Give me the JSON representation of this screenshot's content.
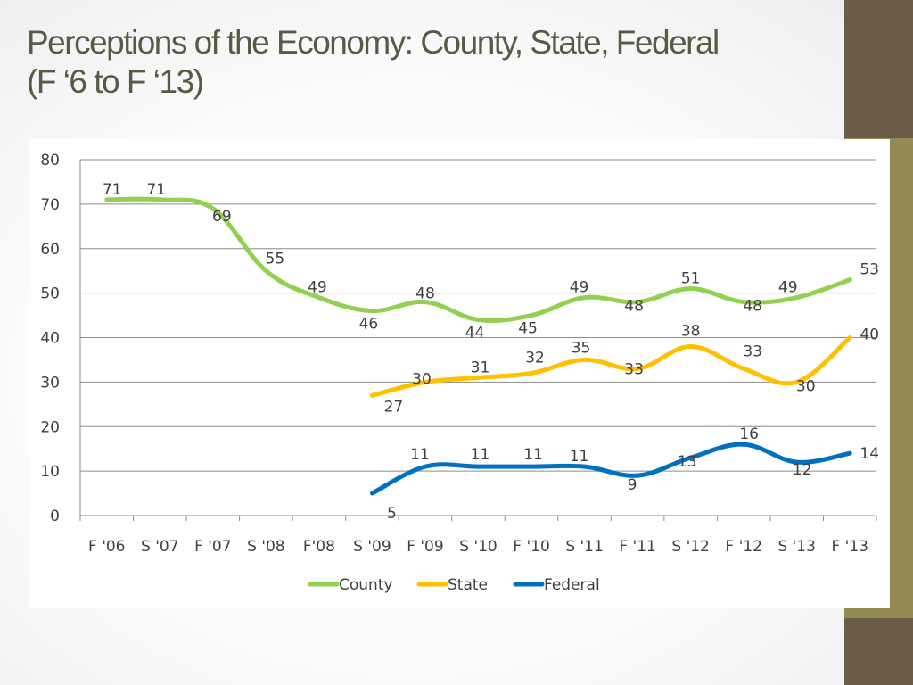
{
  "title": {
    "line1": "Perceptions of the Economy: County, State, Federal",
    "line2": "(F ‘6 to F ‘13)"
  },
  "colors": {
    "sidebar": "#6b5e48",
    "accent": "#948a53",
    "gridline": "#8c8c8c"
  },
  "chart_data": {
    "type": "line",
    "title": "Perceptions of the Economy: County, State, Federal (F ‘6 to F ‘13)",
    "xlabel": "",
    "ylabel": "",
    "ylim": [
      0,
      80
    ],
    "yticks": [
      "0",
      "10",
      "20",
      "30",
      "40",
      "50",
      "60",
      "70",
      "80"
    ],
    "categories": [
      "F '06",
      "S '07",
      "F '07",
      "S '08",
      "F'08",
      "S '09",
      "F '09",
      "S '10",
      "F '10",
      "S '11",
      "F '11",
      "S '12",
      "F '12",
      "S '13",
      "F '13"
    ],
    "grid": true,
    "legend": "bottom",
    "series": [
      {
        "name": "County",
        "color": "#92d050",
        "values": [
          71,
          71,
          69,
          55,
          49,
          46,
          48,
          44,
          45,
          49,
          48,
          51,
          48,
          49,
          53
        ]
      },
      {
        "name": "State",
        "color": "#ffc000",
        "values": [
          null,
          null,
          null,
          null,
          null,
          27,
          30,
          31,
          32,
          35,
          33,
          38,
          33,
          30,
          40
        ]
      },
      {
        "name": "Federal",
        "color": "#0070c0",
        "values": [
          null,
          null,
          null,
          null,
          null,
          5,
          11,
          11,
          11,
          11,
          9,
          13,
          16,
          12,
          14
        ]
      }
    ]
  }
}
